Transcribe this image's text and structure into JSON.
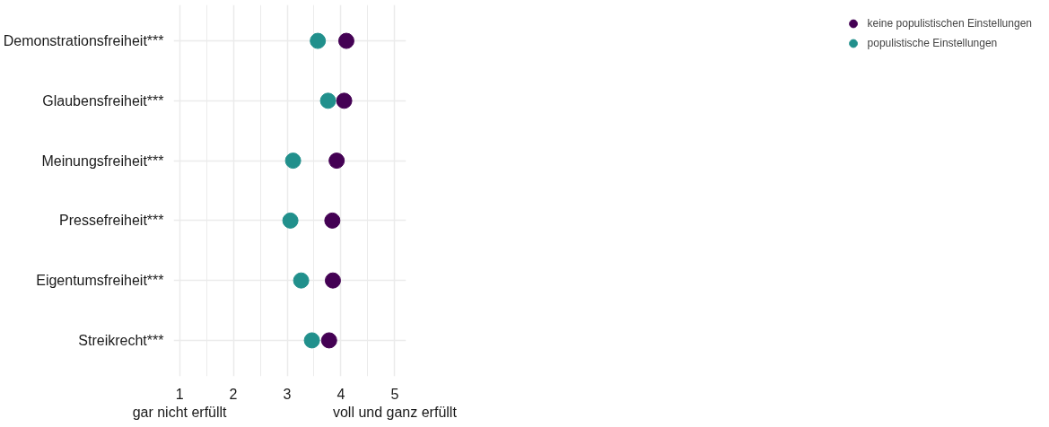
{
  "chart_data": {
    "type": "scatter",
    "orientation": "horizontal",
    "categories": [
      "Demonstrationsfreiheit***",
      "Glaubensfreiheit***",
      "Meinungsfreiheit***",
      "Pressefreiheit***",
      "Eigentumsfreiheit***",
      "Streikrecht***"
    ],
    "series": [
      {
        "name": "keine populistischen Einstellungen",
        "color": "#440154",
        "values": [
          4.1,
          4.06,
          3.92,
          3.84,
          3.85,
          3.78
        ]
      },
      {
        "name": "populistische Einstellungen",
        "color": "#21908c",
        "values": [
          3.57,
          3.76,
          3.11,
          3.06,
          3.26,
          3.46
        ]
      }
    ],
    "xlim": [
      0.89,
      5.21
    ],
    "xticks": [
      {
        "value": 1,
        "label": "1\ngar nicht erfüllt"
      },
      2,
      3,
      4,
      {
        "value": 5,
        "label": "5\nvoll und ganz erfüllt"
      }
    ],
    "grid": true,
    "legend": "right",
    "marker": "circle"
  }
}
